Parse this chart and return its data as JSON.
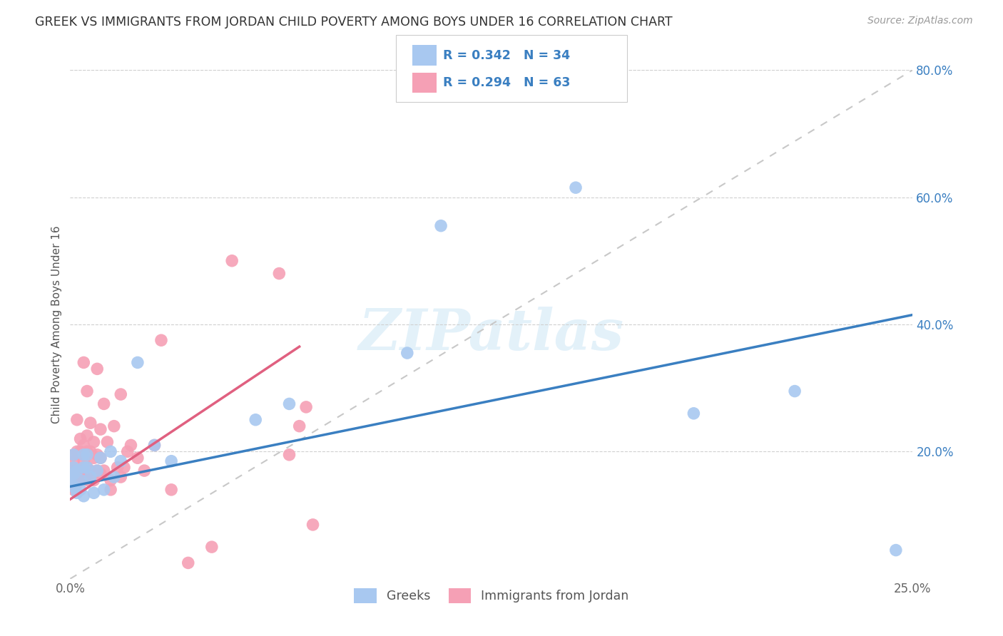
{
  "title": "GREEK VS IMMIGRANTS FROM JORDAN CHILD POVERTY AMONG BOYS UNDER 16 CORRELATION CHART",
  "source": "Source: ZipAtlas.com",
  "ylabel": "Child Poverty Among Boys Under 16",
  "xlim": [
    0,
    0.25
  ],
  "ylim": [
    0,
    0.8
  ],
  "xtick_vals": [
    0,
    0.05,
    0.1,
    0.15,
    0.2,
    0.25
  ],
  "xtick_labels_show": [
    "0.0%",
    "",
    "",
    "",
    "",
    "25.0%"
  ],
  "ytick_vals": [
    0.2,
    0.4,
    0.6,
    0.8
  ],
  "ytick_labels": [
    "20.0%",
    "40.0%",
    "60.0%",
    "80.0%"
  ],
  "greek_R": 0.342,
  "greek_N": 34,
  "jordan_R": 0.294,
  "jordan_N": 63,
  "greek_color": "#a8c8f0",
  "greek_line_color": "#3a7fc1",
  "jordan_color": "#f5a0b5",
  "jordan_line_color": "#e06080",
  "diagonal_color": "#c8c8c8",
  "watermark": "ZIPatlas",
  "legend_color": "#3a7fc1",
  "greek_label": "Greeks",
  "jordan_label": "Immigrants from Jordan",
  "greek_x": [
    0.0,
    0.0,
    0.001,
    0.001,
    0.001,
    0.001,
    0.002,
    0.002,
    0.003,
    0.003,
    0.004,
    0.004,
    0.004,
    0.005,
    0.005,
    0.006,
    0.007,
    0.008,
    0.009,
    0.01,
    0.012,
    0.013,
    0.015,
    0.02,
    0.025,
    0.03,
    0.055,
    0.065,
    0.1,
    0.11,
    0.15,
    0.185,
    0.215,
    0.245
  ],
  "greek_y": [
    0.155,
    0.16,
    0.145,
    0.165,
    0.175,
    0.195,
    0.135,
    0.17,
    0.14,
    0.155,
    0.13,
    0.175,
    0.195,
    0.175,
    0.195,
    0.16,
    0.135,
    0.17,
    0.19,
    0.14,
    0.2,
    0.16,
    0.185,
    0.34,
    0.21,
    0.185,
    0.25,
    0.275,
    0.355,
    0.555,
    0.615,
    0.26,
    0.295,
    0.045
  ],
  "jordan_x": [
    0.0,
    0.0,
    0.0,
    0.001,
    0.001,
    0.001,
    0.001,
    0.001,
    0.002,
    0.002,
    0.002,
    0.002,
    0.003,
    0.003,
    0.003,
    0.003,
    0.004,
    0.004,
    0.004,
    0.004,
    0.004,
    0.005,
    0.005,
    0.005,
    0.005,
    0.005,
    0.006,
    0.006,
    0.006,
    0.007,
    0.007,
    0.007,
    0.008,
    0.008,
    0.008,
    0.009,
    0.009,
    0.009,
    0.01,
    0.01,
    0.011,
    0.012,
    0.012,
    0.013,
    0.014,
    0.015,
    0.015,
    0.016,
    0.017,
    0.018,
    0.02,
    0.022,
    0.025,
    0.027,
    0.03,
    0.035,
    0.042,
    0.048,
    0.062,
    0.065,
    0.068,
    0.07,
    0.072
  ],
  "jordan_y": [
    0.145,
    0.155,
    0.165,
    0.14,
    0.155,
    0.17,
    0.185,
    0.195,
    0.15,
    0.165,
    0.2,
    0.25,
    0.155,
    0.17,
    0.2,
    0.22,
    0.165,
    0.185,
    0.195,
    0.21,
    0.34,
    0.155,
    0.175,
    0.2,
    0.225,
    0.295,
    0.17,
    0.2,
    0.245,
    0.155,
    0.19,
    0.215,
    0.17,
    0.195,
    0.33,
    0.165,
    0.19,
    0.235,
    0.17,
    0.275,
    0.215,
    0.14,
    0.155,
    0.24,
    0.175,
    0.16,
    0.29,
    0.175,
    0.2,
    0.21,
    0.19,
    0.17,
    0.21,
    0.375,
    0.14,
    0.025,
    0.05,
    0.5,
    0.48,
    0.195,
    0.24,
    0.27,
    0.085
  ],
  "greek_line_x": [
    0.0,
    0.25
  ],
  "greek_line_y": [
    0.145,
    0.415
  ],
  "jordan_line_x": [
    0.0,
    0.068
  ],
  "jordan_line_y": [
    0.125,
    0.365
  ]
}
